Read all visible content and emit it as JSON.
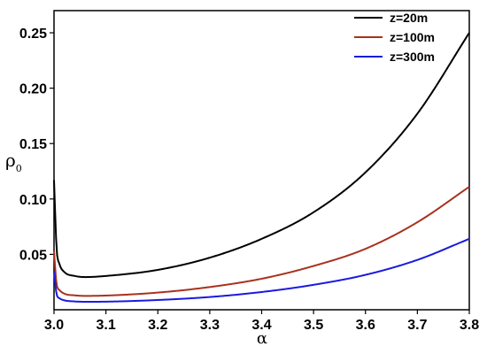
{
  "chart_data": {
    "type": "line",
    "title": "",
    "xlabel": "α",
    "ylabel": "ρ",
    "ylabel_sub": "0",
    "xlim": [
      3.0,
      3.8
    ],
    "ylim": [
      0.0,
      0.27
    ],
    "x_ticks": [
      3.0,
      3.1,
      3.2,
      3.3,
      3.4,
      3.5,
      3.6,
      3.7,
      3.8
    ],
    "x_tick_labels": [
      "3.0",
      "3.1",
      "3.2",
      "3.3",
      "3.4",
      "3.5",
      "3.6",
      "3.7",
      "3.8"
    ],
    "y_ticks": [
      0.05,
      0.1,
      0.15,
      0.2,
      0.25
    ],
    "y_tick_labels": [
      "0.05",
      "0.10",
      "0.15",
      "0.20",
      "0.25"
    ],
    "grid": false,
    "legend_position": "top-right",
    "series": [
      {
        "name": "z=20m",
        "color": "#000000",
        "x": [
          3.0,
          3.005,
          3.01,
          3.02,
          3.04,
          3.06,
          3.1,
          3.2,
          3.3,
          3.4,
          3.5,
          3.6,
          3.7,
          3.8
        ],
        "y": [
          0.117,
          0.055,
          0.042,
          0.034,
          0.0305,
          0.0295,
          0.0305,
          0.036,
          0.047,
          0.064,
          0.088,
          0.124,
          0.177,
          0.25
        ]
      },
      {
        "name": "z=100m",
        "color": "#a8321e",
        "x": [
          3.0,
          3.005,
          3.01,
          3.02,
          3.04,
          3.06,
          3.1,
          3.2,
          3.3,
          3.4,
          3.5,
          3.6,
          3.7,
          3.8
        ],
        "y": [
          0.053,
          0.023,
          0.018,
          0.0145,
          0.013,
          0.0125,
          0.0128,
          0.0155,
          0.0205,
          0.028,
          0.0395,
          0.055,
          0.079,
          0.111
        ]
      },
      {
        "name": "z=300m",
        "color": "#1a1adf",
        "x": [
          3.0,
          3.005,
          3.01,
          3.02,
          3.04,
          3.06,
          3.1,
          3.2,
          3.3,
          3.4,
          3.5,
          3.6,
          3.7,
          3.8
        ],
        "y": [
          0.035,
          0.014,
          0.0105,
          0.0085,
          0.0075,
          0.0072,
          0.0073,
          0.0088,
          0.0115,
          0.016,
          0.0225,
          0.0315,
          0.045,
          0.064
        ]
      }
    ]
  }
}
